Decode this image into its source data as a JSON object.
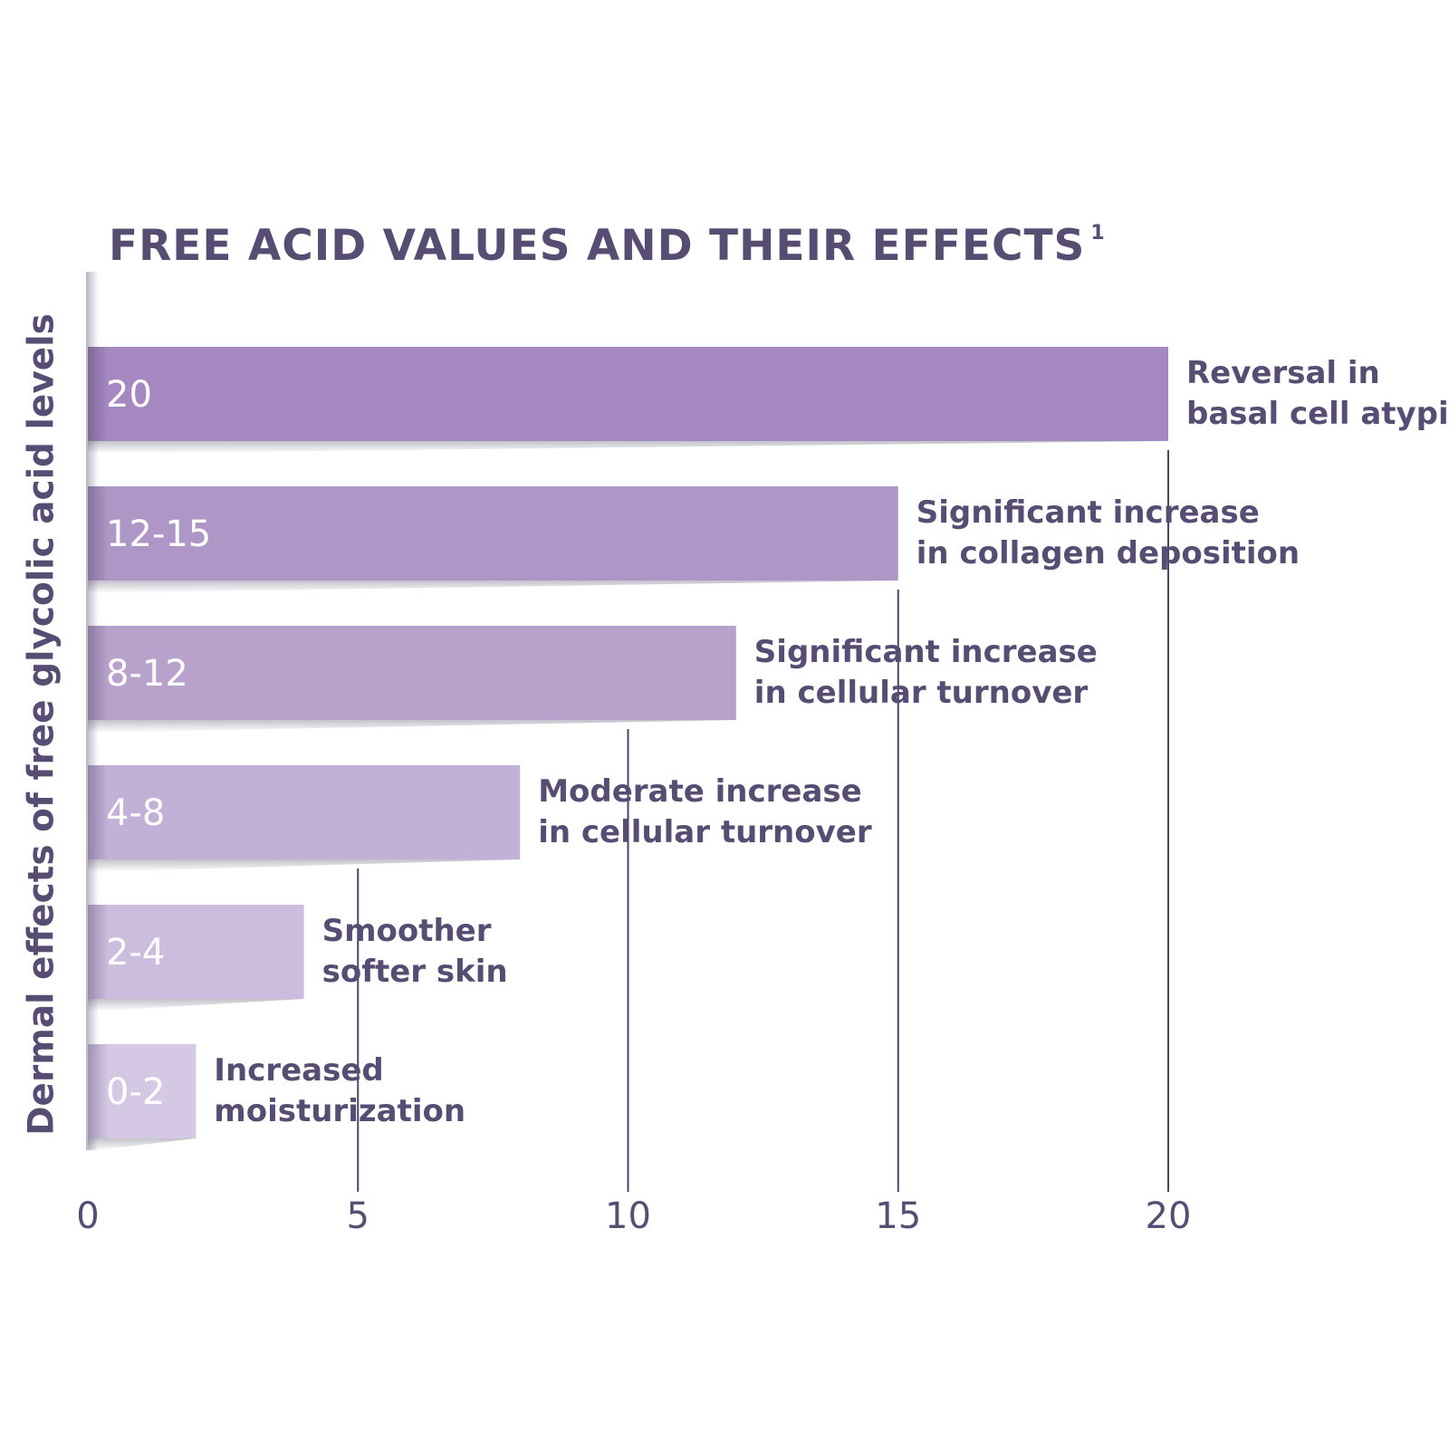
{
  "chart_data": {
    "type": "bar",
    "orientation": "horizontal",
    "title": "FREE ACID VALUES AND THEIR EFFECTS",
    "title_superscript": "1",
    "xlabel": "",
    "ylabel": "Dermal effects of free glycolic acid levels",
    "xlim": [
      0,
      20
    ],
    "xticks": [
      "0",
      "5",
      "10",
      "15",
      "20"
    ],
    "bars": [
      {
        "label": "20",
        "value": 20,
        "effect": [
          "Reversal in",
          "basal cell atypia"
        ],
        "color": "#a488bf"
      },
      {
        "label": "12-15",
        "value": 15,
        "effect": [
          "Significant increase",
          "in collagen deposition"
        ],
        "color": "#ae96c6"
      },
      {
        "label": "8-12",
        "value": 12,
        "effect": [
          "Significant increase",
          "in cellular turnover"
        ],
        "color": "#b8a2cc"
      },
      {
        "label": "4-8",
        "value": 8,
        "effect": [
          "Moderate increase",
          "in cellular turnover"
        ],
        "color": "#c3b0d6"
      },
      {
        "label": "2-4",
        "value": 4,
        "effect": [
          "Smoother",
          "softer skin"
        ],
        "color": "#ccbcdd"
      },
      {
        "label": "0-2",
        "value": 2,
        "effect": [
          "Increased",
          "moisturization"
        ],
        "color": "#d5c8e4"
      }
    ]
  }
}
